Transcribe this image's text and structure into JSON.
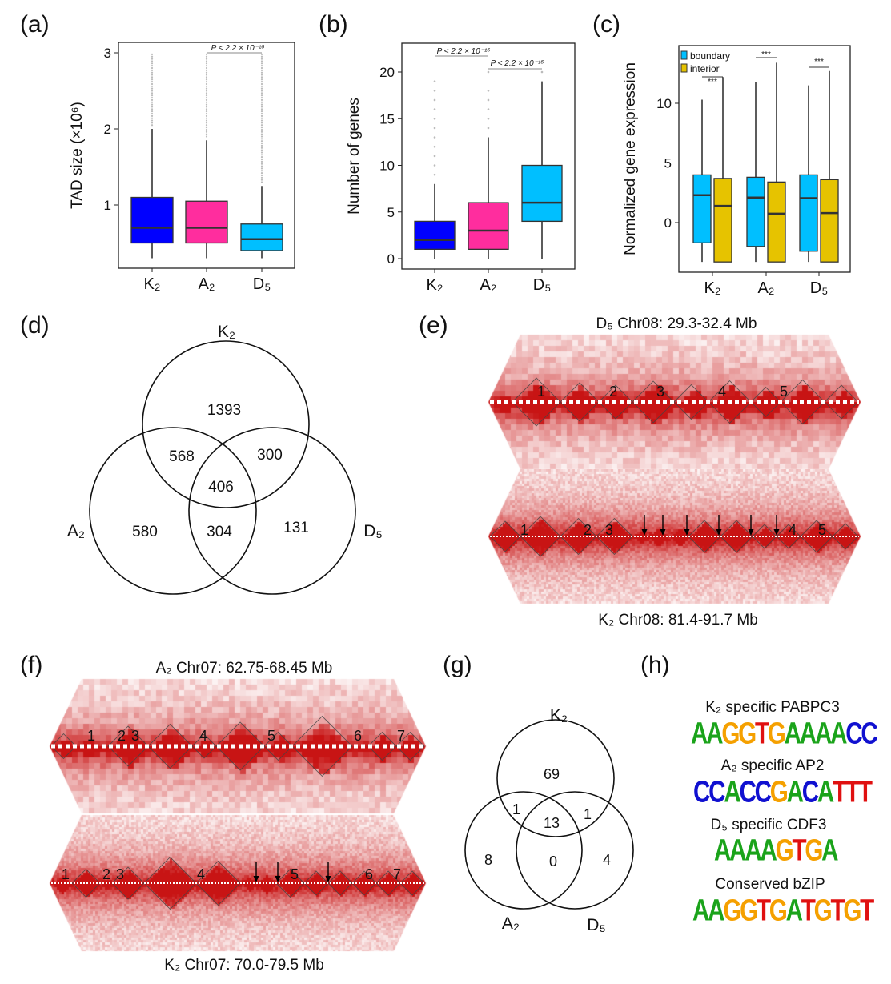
{
  "panel_labels": {
    "a": "(a)",
    "b": "(b)",
    "c": "(c)",
    "d": "(d)",
    "e": "(e)",
    "f": "(f)",
    "g": "(g)",
    "h": "(h)"
  },
  "colors": {
    "K2": "#0000ff",
    "A2": "#ff2d9e",
    "D5": "#00bfff",
    "boundary": "#00bfff",
    "interior": "#e6c300",
    "heatmap": "#cc0000",
    "A": "#1aa31a",
    "C": "#1010d0",
    "G": "#f5a000",
    "T": "#e01010"
  },
  "chart_data": [
    {
      "panel": "a",
      "type": "box",
      "ylabel": "TAD size (×10⁶)",
      "categories": [
        "K₂",
        "A₂",
        "D₅"
      ],
      "yticks": [
        1,
        2,
        3
      ],
      "boxes": [
        {
          "min": 0.3,
          "q1": 0.5,
          "median": 0.7,
          "q3": 1.1,
          "max": 2.0,
          "outlier_range": [
            2.05,
            3.0
          ]
        },
        {
          "min": 0.3,
          "q1": 0.5,
          "median": 0.7,
          "q3": 1.05,
          "max": 1.85,
          "outlier_range": [
            1.9,
            3.0
          ]
        },
        {
          "min": 0.3,
          "q1": 0.4,
          "median": 0.55,
          "q3": 0.75,
          "max": 1.25,
          "outlier_range": [
            1.3,
            3.0
          ]
        }
      ],
      "significance": [
        {
          "pair": [
            "A₂",
            "D₅"
          ],
          "label": "P < 2.2 × 10⁻¹⁶"
        }
      ]
    },
    {
      "panel": "b",
      "type": "box",
      "ylabel": "Number of genes",
      "categories": [
        "K₂",
        "A₂",
        "D₅"
      ],
      "yticks": [
        0,
        5,
        10,
        15,
        20
      ],
      "boxes": [
        {
          "min": 0,
          "q1": 1,
          "median": 2,
          "q3": 4,
          "max": 8,
          "outliers": [
            9,
            10,
            11,
            12,
            13,
            14,
            15,
            16,
            17,
            18,
            19
          ]
        },
        {
          "min": 0,
          "q1": 1,
          "median": 3,
          "q3": 6,
          "max": 13,
          "outliers": [
            14,
            15,
            16,
            17,
            18,
            20
          ]
        },
        {
          "min": 0,
          "q1": 4,
          "median": 6,
          "q3": 10,
          "max": 19,
          "outliers": [
            20
          ]
        }
      ],
      "significance": [
        {
          "pair": [
            "K₂",
            "A₂"
          ],
          "label": "P < 2.2 × 10⁻¹⁶"
        },
        {
          "pair": [
            "A₂",
            "D₅"
          ],
          "label": "P < 2.2 × 10⁻¹⁶"
        }
      ]
    },
    {
      "panel": "c",
      "type": "box",
      "ylabel": "Normalized gene expression",
      "categories": [
        "K₂",
        "A₂",
        "D₅"
      ],
      "yticks": [
        0,
        5,
        10
      ],
      "legend": {
        "placement": "top-left",
        "entries": [
          "boundary",
          "interior"
        ]
      },
      "series": [
        {
          "name": "boundary",
          "boxes": [
            {
              "min": -3.3,
              "q1": -1.7,
              "median": 2.3,
              "q3": 4.0,
              "max": 10.3
            },
            {
              "min": -3.3,
              "q1": -2.0,
              "median": 2.1,
              "q3": 3.8,
              "max": 11.8
            },
            {
              "min": -3.3,
              "q1": -2.4,
              "median": 2.05,
              "q3": 4.0,
              "max": 11.5
            }
          ]
        },
        {
          "name": "interior",
          "boxes": [
            {
              "min": -3.3,
              "q1": -3.3,
              "median": 1.4,
              "q3": 3.7,
              "max": 12.2
            },
            {
              "min": -3.3,
              "q1": -3.3,
              "median": 0.75,
              "q3": 3.4,
              "max": 13.4
            },
            {
              "min": -3.3,
              "q1": -3.3,
              "median": 0.8,
              "q3": 3.6,
              "max": 12.7
            }
          ]
        }
      ],
      "significance": [
        "***",
        "***",
        "***"
      ]
    },
    {
      "panel": "d",
      "type": "venn",
      "sets": [
        "K₂",
        "A₂",
        "D₅"
      ],
      "regions": {
        "K2_only": 1393,
        "A2_only": 580,
        "D5_only": 131,
        "K2_A2": 568,
        "K2_D5": 300,
        "A2_D5": 304,
        "all": 406
      }
    },
    {
      "panel": "g",
      "type": "venn",
      "sets": [
        "K₂",
        "A₂",
        "D₅"
      ],
      "regions": {
        "K2_only": 69,
        "A2_only": 8,
        "D5_only": 4,
        "K2_A2": 1,
        "K2_D5": 1,
        "A2_D5": 0,
        "all": 13
      }
    }
  ],
  "heatmaps": {
    "e_top": {
      "title": "D₅ Chr08: 29.3-32.4 Mb",
      "labels": [
        "1",
        "2",
        "3",
        "4",
        "5"
      ]
    },
    "e_bottom": {
      "title": "K₂ Chr08: 81.4-91.7 Mb",
      "labels": [
        "1",
        "2",
        "3",
        "4",
        "5"
      ],
      "arrows": 6
    },
    "f_top": {
      "title": "A₂ Chr07: 62.75-68.45 Mb",
      "labels": [
        "1",
        "2",
        "3",
        "4",
        "5",
        "6",
        "7"
      ]
    },
    "f_bottom": {
      "title": "K₂ Chr07: 70.0-79.5 Mb",
      "labels": [
        "1",
        "2",
        "3",
        "4",
        "5",
        "6",
        "7"
      ],
      "arrows": 3
    }
  },
  "motifs": [
    {
      "title": "K₂ specific PABPC3",
      "sequence": "AAGGTGAAAACC"
    },
    {
      "title": "A₂ specific AP2",
      "sequence": "CCACCGACATTT"
    },
    {
      "title": "D₅ specific CDF3",
      "sequence": "AAAAGTGA"
    },
    {
      "title": "Conserved bZIP",
      "sequence": "AAGGTGATGTGT"
    }
  ]
}
